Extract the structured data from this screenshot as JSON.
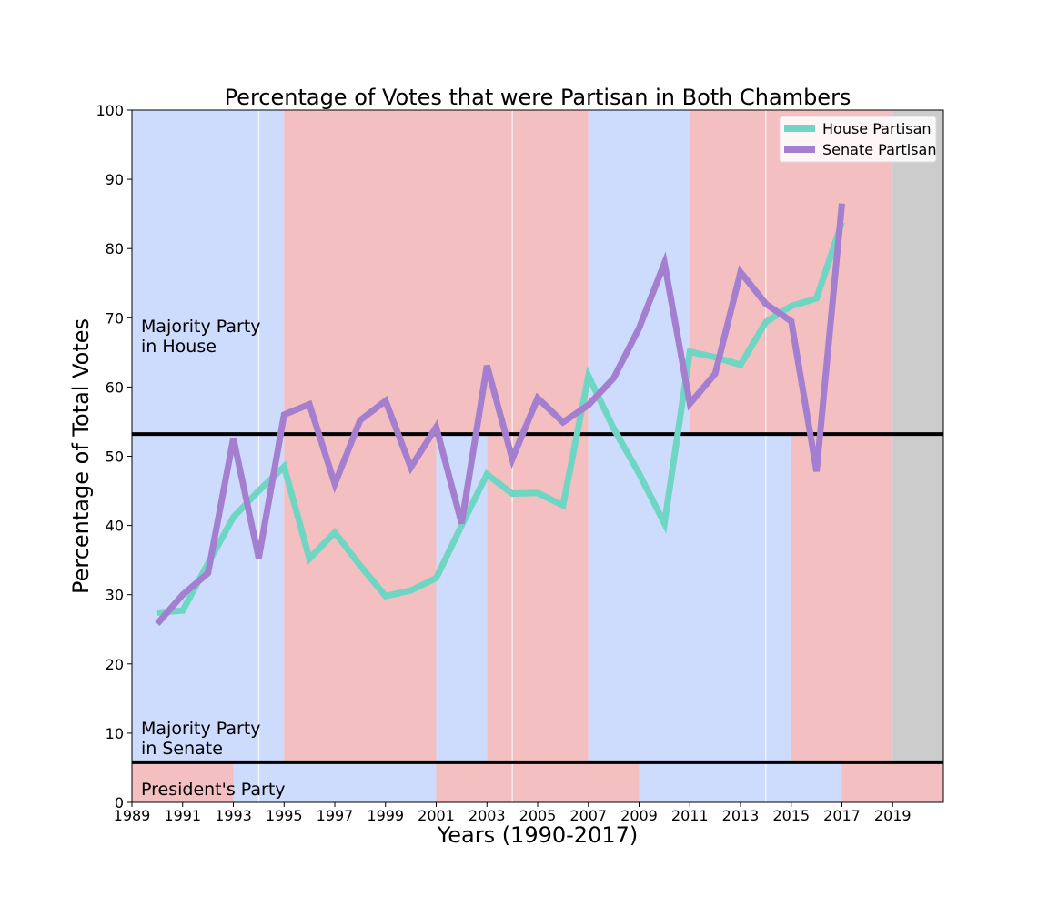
{
  "chart_data": {
    "type": "line",
    "title": "Percentage of Votes that were Partisan in Both Chambers",
    "xlabel": "Years (1990-2017)",
    "ylabel": "Percentage of Total Votes",
    "xlim": [
      1989,
      2021
    ],
    "ylim": [
      0,
      100
    ],
    "x_ticks": [
      1989,
      1991,
      1993,
      1995,
      1997,
      1999,
      2001,
      2003,
      2005,
      2007,
      2009,
      2011,
      2013,
      2015,
      2017,
      2019
    ],
    "y_ticks": [
      0,
      10,
      20,
      30,
      40,
      50,
      60,
      70,
      80,
      90,
      100
    ],
    "x": [
      1990,
      1991,
      1992,
      1993,
      1994,
      1995,
      1996,
      1997,
      1998,
      1999,
      2000,
      2001,
      2002,
      2003,
      2004,
      2005,
      2006,
      2007,
      2008,
      2009,
      2010,
      2011,
      2012,
      2013,
      2014,
      2015,
      2016,
      2017
    ],
    "series": [
      {
        "name": "House Partisan",
        "color": "#6fd6c4",
        "values": [
          27.4,
          27.7,
          34.5,
          41.2,
          45.0,
          48.5,
          35.2,
          39.0,
          34.2,
          29.8,
          30.6,
          32.4,
          40.0,
          47.4,
          44.6,
          44.7,
          42.9,
          61.6,
          54.0,
          47.5,
          40.3,
          65.1,
          64.3,
          63.2,
          69.4,
          71.7,
          72.8,
          83.8
        ]
      },
      {
        "name": "Senate Partisan",
        "color": "#a57fcf",
        "values": [
          25.8,
          30.0,
          33.1,
          52.6,
          35.3,
          56.0,
          57.5,
          46.0,
          55.2,
          58.0,
          48.4,
          54.2,
          40.3,
          63.1,
          49.6,
          58.4,
          54.9,
          57.4,
          61.3,
          68.5,
          77.9,
          57.6,
          61.9,
          76.6,
          72.0,
          69.5,
          47.8,
          86.5
        ]
      }
    ],
    "majority_divider_y": 53.2,
    "president_divider_y": 5.8,
    "background_bands": {
      "house": [
        {
          "from": 1989,
          "to": 1995,
          "party": "D"
        },
        {
          "from": 1995,
          "to": 2007,
          "party": "R"
        },
        {
          "from": 2007,
          "to": 2011,
          "party": "D"
        },
        {
          "from": 2011,
          "to": 2019,
          "party": "R"
        },
        {
          "from": 2019,
          "to": 2021,
          "party": "none"
        }
      ],
      "senate": [
        {
          "from": 1989,
          "to": 1995,
          "party": "D"
        },
        {
          "from": 1995,
          "to": 2001,
          "party": "R"
        },
        {
          "from": 2001,
          "to": 2003,
          "party": "D"
        },
        {
          "from": 2003,
          "to": 2007,
          "party": "R"
        },
        {
          "from": 2007,
          "to": 2015,
          "party": "D"
        },
        {
          "from": 2015,
          "to": 2019,
          "party": "R"
        },
        {
          "from": 2019,
          "to": 2021,
          "party": "none"
        }
      ],
      "president": [
        {
          "from": 1989,
          "to": 1993,
          "party": "R"
        },
        {
          "from": 1993,
          "to": 2001,
          "party": "D"
        },
        {
          "from": 2001,
          "to": 2009,
          "party": "R"
        },
        {
          "from": 2009,
          "to": 2017,
          "party": "D"
        },
        {
          "from": 2017,
          "to": 2021,
          "party": "R"
        }
      ]
    },
    "party_colors": {
      "D": "#cddcfd",
      "R": "#f4bfc0",
      "none": "#cccccc"
    },
    "white_gridlines_x": [
      1994,
      2004,
      2014
    ],
    "annotations": {
      "house_label_line1": "Majority Party",
      "house_label_line2": "in House",
      "senate_label_line1": "Majority Party",
      "senate_label_line2": "in Senate",
      "president_label": "President's Party"
    },
    "legend_position": "upper right",
    "grid": false
  }
}
